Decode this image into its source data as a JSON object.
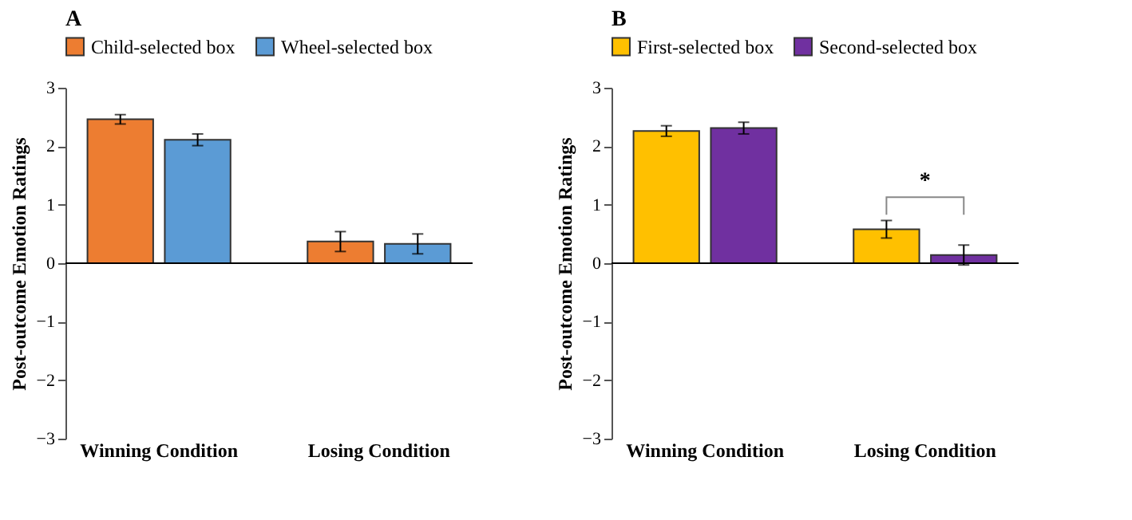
{
  "chart_data": [
    {
      "type": "bar",
      "title": "A",
      "ylabel": "Post-outcome Emotion Ratings",
      "categories": [
        "Winning Condition",
        "Losing Condition"
      ],
      "series": [
        {
          "name": "Child-selected box",
          "color": "#ed7d31",
          "values": [
            2.46,
            0.37
          ],
          "errors": [
            0.08,
            0.17
          ]
        },
        {
          "name": "Wheel-selected box",
          "color": "#5b9bd5",
          "values": [
            2.11,
            0.33
          ],
          "errors": [
            0.1,
            0.17
          ]
        }
      ],
      "ylim": [
        -3,
        3
      ],
      "yticks": [
        -3,
        -2,
        -1,
        0,
        1,
        2,
        3
      ],
      "grid": false,
      "legend": "top",
      "ref_lines": [
        {
          "axis": "y",
          "value": 0,
          "color": "#000000"
        }
      ]
    },
    {
      "type": "bar",
      "title": "B",
      "ylabel": "Post-outcome Emotion Ratings",
      "categories": [
        "Winning Condition",
        "Losing Condition"
      ],
      "series": [
        {
          "name": "First-selected box",
          "color": "#ffc000",
          "values": [
            2.26,
            0.58
          ],
          "errors": [
            0.09,
            0.15
          ]
        },
        {
          "name": "Second-selected box",
          "color": "#7030a0",
          "values": [
            2.31,
            0.14
          ],
          "errors": [
            0.1,
            0.17
          ]
        }
      ],
      "ylim": [
        -3,
        3
      ],
      "yticks": [
        -3,
        -2,
        -1,
        0,
        1,
        2,
        3
      ],
      "grid": false,
      "legend": "top",
      "ref_lines": [
        {
          "axis": "y",
          "value": 0,
          "color": "#000000"
        }
      ],
      "annotations": [
        "*"
      ]
    }
  ]
}
